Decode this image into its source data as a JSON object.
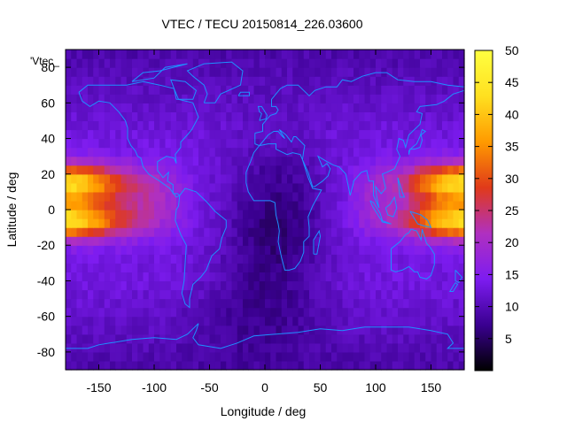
{
  "chart_data": {
    "type": "heatmap",
    "title": "VTEC / TECU 20150814_226.03600",
    "xlabel": "Longitude / deg",
    "ylabel": "Latitude / deg",
    "legend_key": "'Vtec_",
    "xlim": [
      -180,
      180
    ],
    "ylim": [
      -90,
      90
    ],
    "x_ticks": [
      -150,
      -100,
      -50,
      0,
      50,
      100,
      150
    ],
    "y_ticks": [
      -80,
      -60,
      -40,
      -20,
      0,
      20,
      40,
      60,
      80
    ],
    "colorbar": {
      "range": [
        0,
        50
      ],
      "ticks": [
        5,
        10,
        15,
        20,
        25,
        30,
        35,
        40,
        45,
        50
      ],
      "palette": [
        "#000000",
        "#3a0090",
        "#7d1cf0",
        "#b030c0",
        "#e03a1a",
        "#ff9a00",
        "#ffe020",
        "#ffff40"
      ]
    },
    "grid": "5 x 5 deg",
    "lat_centers": [
      -87.5,
      -82.5,
      -77.5,
      -72.5,
      -67.5,
      -62.5,
      -57.5,
      -52.5,
      -47.5,
      -42.5,
      -37.5,
      -32.5,
      -27.5,
      -22.5,
      -17.5,
      -12.5,
      -7.5,
      -2.5,
      2.5,
      7.5,
      12.5,
      17.5,
      22.5,
      27.5,
      32.5,
      37.5,
      42.5,
      47.5,
      52.5,
      57.5,
      62.5,
      67.5,
      72.5,
      77.5,
      82.5,
      87.5
    ],
    "lon_centers": [
      -177.5,
      -172.5,
      -167.5,
      -162.5,
      -157.5,
      -152.5,
      -147.5,
      -142.5,
      -137.5,
      -132.5,
      -127.5,
      -122.5,
      -117.5,
      -112.5,
      -107.5,
      -102.5,
      -97.5,
      -92.5,
      -87.5,
      -82.5,
      -77.5,
      -72.5,
      -67.5,
      -62.5,
      -57.5,
      -52.5,
      -47.5,
      -42.5,
      -37.5,
      -32.5,
      -27.5,
      -22.5,
      -17.5,
      -12.5,
      -7.5,
      -2.5,
      2.5,
      7.5,
      12.5,
      17.5,
      22.5,
      27.5,
      32.5,
      37.5,
      42.5,
      47.5,
      52.5,
      57.5,
      62.5,
      67.5,
      72.5,
      77.5,
      82.5,
      87.5,
      92.5,
      97.5,
      102.5,
      107.5,
      112.5,
      117.5,
      122.5,
      127.5,
      132.5,
      137.5,
      142.5,
      147.5,
      152.5,
      157.5,
      162.5,
      167.5,
      172.5,
      177.5
    ],
    "peak_regions": [
      {
        "lon": [
          -180,
          -120
        ],
        "lat": [
          -20,
          30
        ],
        "value_max": 44
      },
      {
        "lon": [
          110,
          180
        ],
        "lat": [
          -20,
          30
        ],
        "value_max": 42
      }
    ],
    "background_values": {
      "polar": 8,
      "mid_latitude": 13,
      "atlantic_africa_low": 6
    }
  }
}
